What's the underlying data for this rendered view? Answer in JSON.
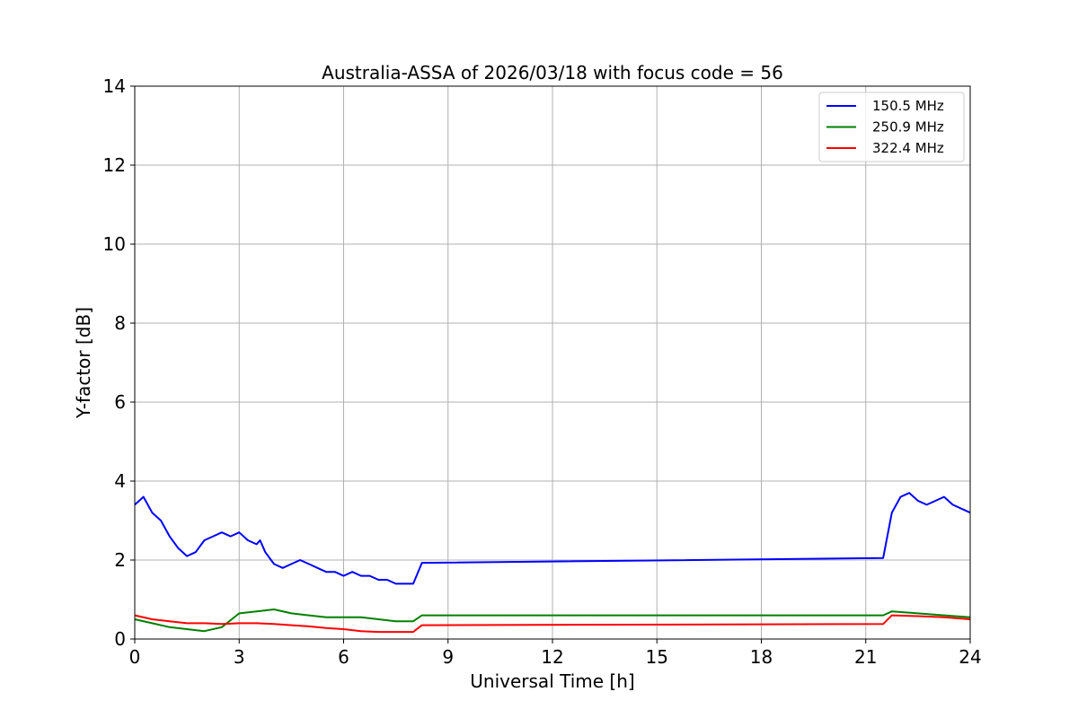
{
  "chart_data": {
    "type": "line",
    "title": "Australia-ASSA of 2026/03/18 with focus code = 56",
    "xlabel": "Universal Time [h]",
    "ylabel": "Y-factor [dB]",
    "xlim": [
      0,
      24
    ],
    "ylim": [
      0,
      14
    ],
    "xticks": [
      0,
      3,
      6,
      9,
      12,
      15,
      18,
      21,
      24
    ],
    "yticks": [
      0,
      2,
      4,
      6,
      8,
      10,
      12,
      14
    ],
    "grid": true,
    "legend_position": "top-right",
    "series": [
      {
        "name": "150.5 MHz",
        "color": "#0000ff",
        "x": [
          0.0,
          0.25,
          0.5,
          0.75,
          1.0,
          1.25,
          1.5,
          1.75,
          2.0,
          2.25,
          2.5,
          2.75,
          3.0,
          3.25,
          3.5,
          3.6,
          3.75,
          4.0,
          4.25,
          4.5,
          4.75,
          5.0,
          5.25,
          5.5,
          5.75,
          6.0,
          6.25,
          6.5,
          6.75,
          7.0,
          7.25,
          7.5,
          7.75,
          8.0,
          8.25,
          21.5,
          21.75,
          22.0,
          22.25,
          22.5,
          22.75,
          23.0,
          23.25,
          23.5,
          23.75,
          24.0
        ],
        "values": [
          3.4,
          3.6,
          3.2,
          3.0,
          2.6,
          2.3,
          2.1,
          2.2,
          2.5,
          2.6,
          2.7,
          2.6,
          2.7,
          2.5,
          2.4,
          2.5,
          2.2,
          1.9,
          1.8,
          1.9,
          2.0,
          1.9,
          1.8,
          1.7,
          1.7,
          1.6,
          1.7,
          1.6,
          1.6,
          1.5,
          1.5,
          1.4,
          1.4,
          1.4,
          1.93,
          2.05,
          3.2,
          3.6,
          3.7,
          3.5,
          3.4,
          3.5,
          3.6,
          3.4,
          3.3,
          3.2
        ]
      },
      {
        "name": "250.9 MHz",
        "color": "#008000",
        "x": [
          0.0,
          0.5,
          1.0,
          1.5,
          2.0,
          2.5,
          3.0,
          3.5,
          4.0,
          4.5,
          5.0,
          5.5,
          6.0,
          6.5,
          7.0,
          7.5,
          8.0,
          8.25,
          21.5,
          21.75,
          22.5,
          23.25,
          24.0
        ],
        "values": [
          0.5,
          0.4,
          0.3,
          0.25,
          0.2,
          0.3,
          0.65,
          0.7,
          0.75,
          0.65,
          0.6,
          0.55,
          0.55,
          0.55,
          0.5,
          0.45,
          0.45,
          0.6,
          0.6,
          0.7,
          0.65,
          0.6,
          0.55
        ]
      },
      {
        "name": "322.4 MHz",
        "color": "#ff0000",
        "x": [
          0.0,
          0.5,
          1.0,
          1.5,
          2.0,
          2.5,
          3.0,
          3.5,
          4.0,
          4.5,
          5.0,
          5.5,
          6.0,
          6.5,
          7.0,
          7.5,
          8.0,
          8.25,
          21.5,
          21.75,
          22.5,
          23.25,
          24.0
        ],
        "values": [
          0.6,
          0.5,
          0.45,
          0.4,
          0.4,
          0.38,
          0.4,
          0.4,
          0.38,
          0.35,
          0.32,
          0.28,
          0.25,
          0.2,
          0.18,
          0.18,
          0.18,
          0.35,
          0.38,
          0.6,
          0.58,
          0.55,
          0.5
        ]
      }
    ]
  }
}
